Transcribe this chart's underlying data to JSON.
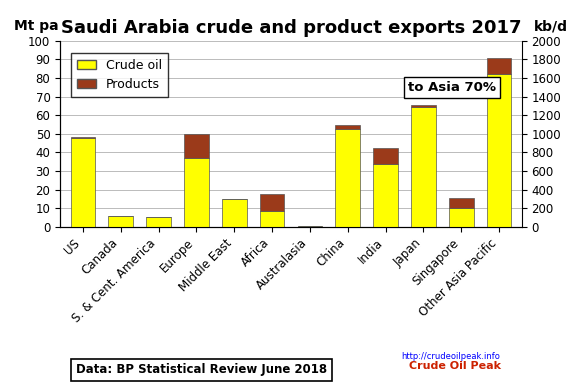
{
  "title": "Saudi Arabia crude and product exports 2017",
  "ylabel_left": "Mt pa",
  "ylabel_right": "kb/d",
  "categories": [
    "US",
    "Canada",
    "S. & Cent. America",
    "Europe",
    "Middle East",
    "Africa",
    "Australasia",
    "China",
    "India",
    "Japan",
    "Singapore",
    "Other Asia Pacific"
  ],
  "crude_oil": [
    47.5,
    6.0,
    5.0,
    37.0,
    15.0,
    8.5,
    0.5,
    52.5,
    34.0,
    64.5,
    10.0,
    82.0
  ],
  "products": [
    1.0,
    0.0,
    0.0,
    13.0,
    0.0,
    9.0,
    0.0,
    2.0,
    8.5,
    1.0,
    5.5,
    9.0
  ],
  "crude_color": "#FFFF00",
  "products_color": "#9B3A1A",
  "bar_edge_color": "#555555",
  "legend_crude": "Crude oil",
  "legend_products": "Products",
  "annotation_text": "to Asia 70%",
  "annotation_xi": 8.6,
  "annotation_yi": 73,
  "source_text": "Data: BP Statistical Review June 2018",
  "ylim_left": [
    0,
    100
  ],
  "ylim_right": [
    0,
    2000
  ],
  "yticks_left": [
    0,
    10,
    20,
    30,
    40,
    50,
    60,
    70,
    80,
    90,
    100
  ],
  "yticks_right": [
    0,
    200,
    400,
    600,
    800,
    1000,
    1200,
    1400,
    1600,
    1800,
    2000
  ],
  "scale_factor": 20,
  "background_color": "#FFFFFF",
  "grid_color": "#BBBBBB",
  "title_fontsize": 13,
  "label_fontsize": 10,
  "tick_fontsize": 8.5,
  "bar_width": 0.65
}
